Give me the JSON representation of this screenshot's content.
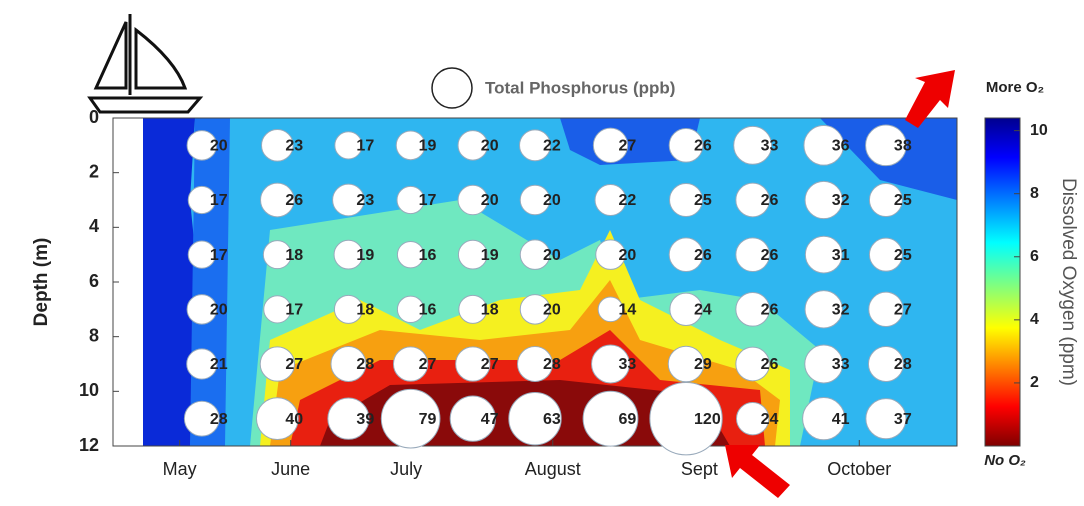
{
  "chart_data": {
    "type": "bubble",
    "legend_label": "Total Phosphorus (ppb)",
    "y_label": "Depth (m)",
    "colorbar_label": "Dissolved Oxygen (ppm)",
    "colorbar_top_label": "More O₂",
    "colorbar_bottom_label": "No O₂",
    "xlim": [
      0,
      190
    ],
    "xticks": [
      {
        "value": 15,
        "label": "May"
      },
      {
        "value": 40,
        "label": "June"
      },
      {
        "value": 66,
        "label": "July"
      },
      {
        "value": 99,
        "label": "August"
      },
      {
        "value": 132,
        "label": "Sept"
      },
      {
        "value": 168,
        "label": "October"
      }
    ],
    "ylim": [
      0,
      12
    ],
    "yticks": [
      0,
      2,
      4,
      6,
      8,
      10,
      12
    ],
    "y_inverted": true,
    "clim": [
      0,
      10.4
    ],
    "cticks": [
      2,
      4,
      6,
      8,
      10
    ],
    "x": [
      20,
      37,
      53,
      67,
      81,
      95,
      112,
      129,
      144,
      160,
      174
    ],
    "y": [
      1,
      3,
      5,
      7,
      9,
      11
    ],
    "values": [
      [
        20,
        23,
        17,
        19,
        20,
        22,
        27,
        26,
        33,
        36,
        38
      ],
      [
        17,
        26,
        23,
        17,
        20,
        20,
        22,
        25,
        26,
        32,
        25
      ],
      [
        17,
        18,
        19,
        16,
        19,
        20,
        20,
        26,
        26,
        31,
        25
      ],
      [
        20,
        17,
        18,
        16,
        18,
        20,
        14,
        24,
        26,
        32,
        27
      ],
      [
        21,
        27,
        28,
        27,
        27,
        28,
        33,
        29,
        26,
        33,
        28
      ],
      [
        28,
        40,
        39,
        79,
        47,
        63,
        69,
        120,
        24,
        41,
        37
      ]
    ]
  }
}
